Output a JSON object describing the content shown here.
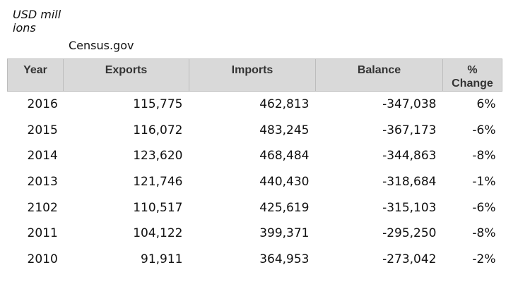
{
  "caption": {
    "units": "USD millions",
    "source": "Census.gov"
  },
  "table": {
    "headers": [
      "Year",
      "Exports",
      "Imports",
      "Balance",
      "% Change"
    ],
    "rows": [
      [
        "2016",
        "115,775",
        "462,813",
        "-347,038",
        "6%"
      ],
      [
        "2015",
        "116,072",
        "483,245",
        "-367,173",
        "-6%"
      ],
      [
        "2014",
        "123,620",
        "468,484",
        "-344,863",
        "-8%"
      ],
      [
        "2013",
        "121,746",
        "440,430",
        "-318,684",
        "-1%"
      ],
      [
        "2102",
        "110,517",
        "425,619",
        "-315,103",
        "-6%"
      ],
      [
        "2011",
        "104,122",
        "399,371",
        "-295,250",
        "-8%"
      ],
      [
        "2010",
        "91,911",
        "364,953",
        "-273,042",
        "-2%"
      ]
    ]
  }
}
